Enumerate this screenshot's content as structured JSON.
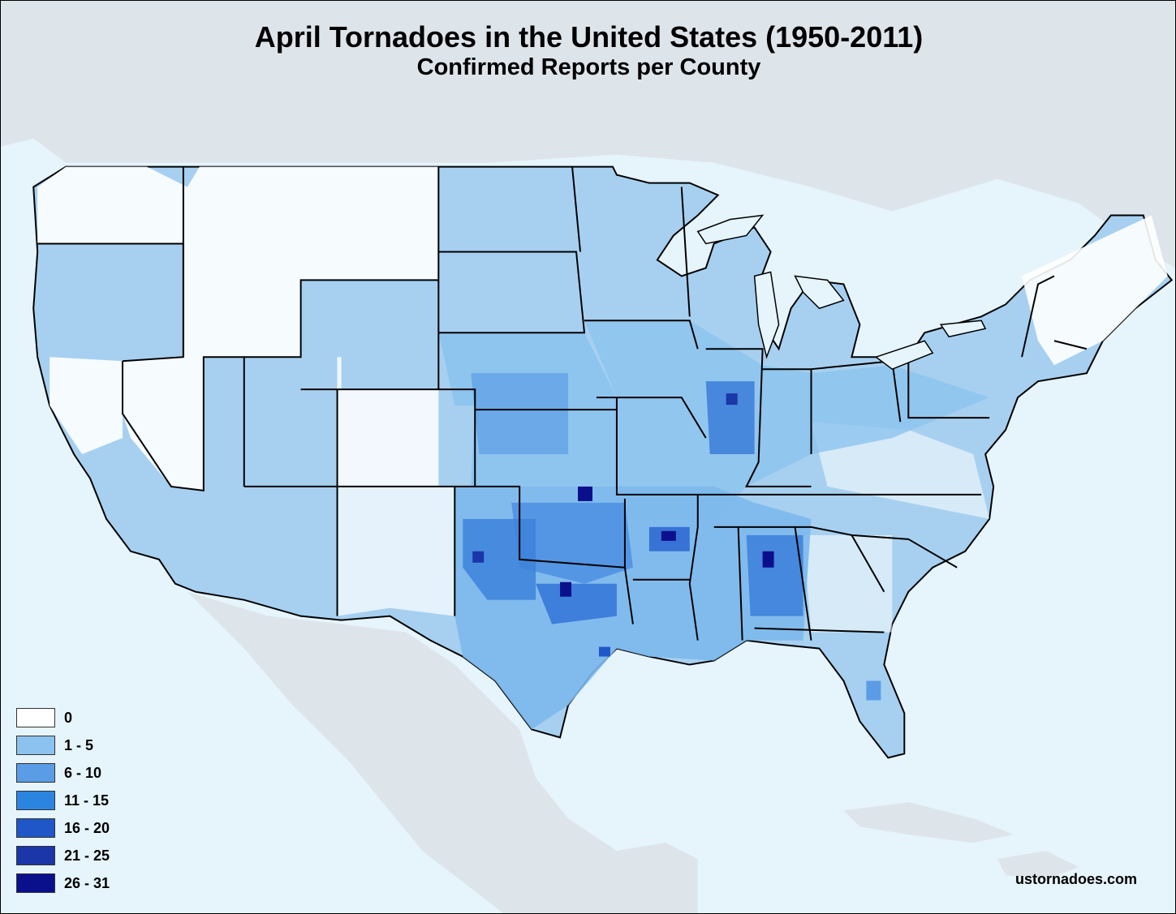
{
  "title": "April Tornadoes in the United States (1950-2011)",
  "subtitle": "Confirmed Reports per County",
  "legend": [
    {
      "label": "0",
      "color": "#ffffff"
    },
    {
      "label": "1 - 5",
      "color": "#8cc3ee"
    },
    {
      "label": "6 - 10",
      "color": "#5a9de6"
    },
    {
      "label": "11 - 15",
      "color": "#2b84e0"
    },
    {
      "label": "16 - 20",
      "color": "#2057c8"
    },
    {
      "label": "21 - 25",
      "color": "#1a36a8"
    },
    {
      "label": "26 - 31",
      "color": "#0a0f8c"
    }
  ],
  "credit": "ustornadoes.com",
  "colors": {
    "ocean": "#e6f4fc",
    "land_outside": "#dfe7ee",
    "border": "#000000"
  }
}
